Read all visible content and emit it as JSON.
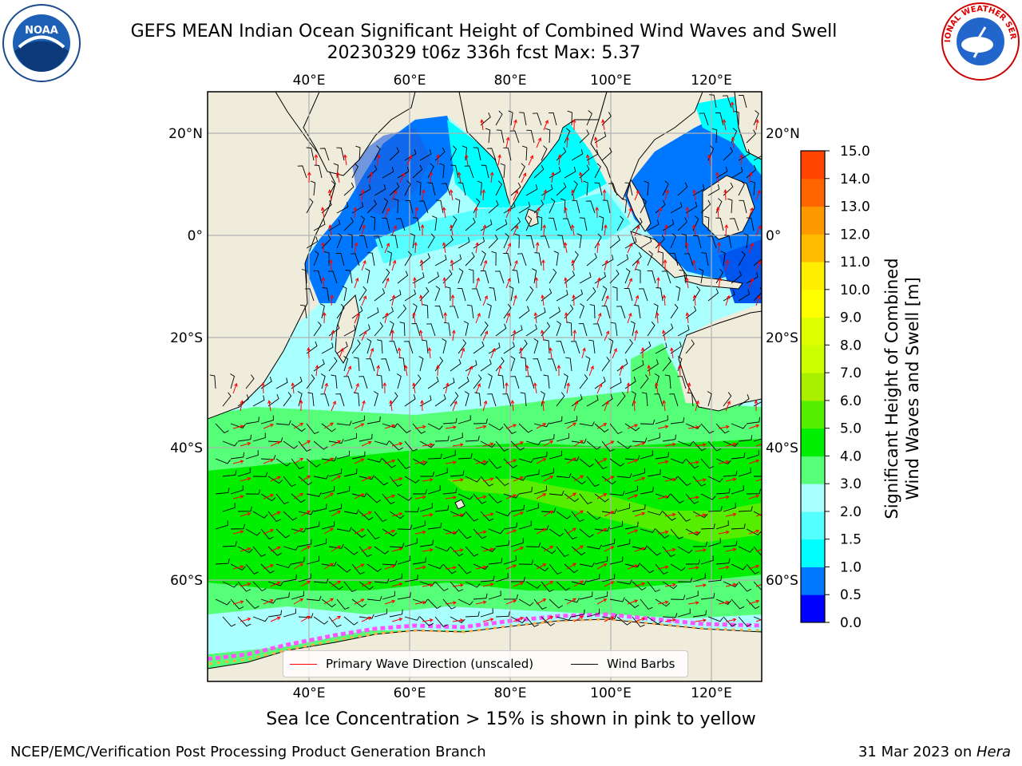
{
  "header": {
    "title_line1": "GEFS MEAN Indian Ocean Significant Height of Combined Wind Waves and Swell",
    "title_line2": "20230329 t06z 336h fcst   Max: 5.37"
  },
  "logos": {
    "left": {
      "icon": "noaa-logo",
      "text": "NOAA"
    },
    "right": {
      "icon": "nws-logo",
      "text": "NATIONAL WEATHER SERVICE"
    }
  },
  "map": {
    "lon_ticks": [
      "40°E",
      "60°E",
      "80°E",
      "100°E",
      "120°E"
    ],
    "lat_ticks": [
      "20°N",
      "0°",
      "20°S",
      "40°S",
      "60°S"
    ],
    "land_color": "#efecdc",
    "grid_color": "#b0b0b0"
  },
  "colorbar": {
    "title": "Significant Height of Combined Wind Waves and Swell [m]",
    "title_line1": "Significant Height of Combined",
    "title_line2": "Wind Waves and Swell [m]",
    "ticks": [
      "15.0",
      "14.0",
      "13.0",
      "12.0",
      "11.0",
      "10.0",
      "9.0",
      "8.0",
      "7.0",
      "6.0",
      "5.0",
      "4.0",
      "3.0",
      "2.0",
      "1.5",
      "1.0",
      "0.5",
      "0.0"
    ],
    "colors": [
      "#0000ff",
      "#0077ff",
      "#00ffff",
      "#55ffff",
      "#aaffff",
      "#55ff77",
      "#00ee00",
      "#55ee00",
      "#aaee00",
      "#ccff00",
      "#ddff00",
      "#ffff00",
      "#ffee00",
      "#ffbb00",
      "#ff9900",
      "#ff6600",
      "#ff4400",
      "#ff0000"
    ]
  },
  "legend": {
    "wave_label": "Primary Wave Direction (unscaled)",
    "wind_label": "Wind Barbs",
    "wave_color": "#ff0000",
    "wind_color": "#000000"
  },
  "caption": "Sea Ice Concentration > 15% is shown in pink to yellow",
  "footer": {
    "left": "NCEP/EMC/Verification Post Processing Product Generation Branch",
    "date": "31 Mar 2023 on ",
    "host": "Hera"
  }
}
